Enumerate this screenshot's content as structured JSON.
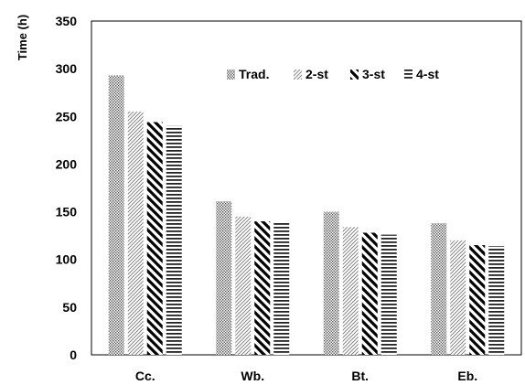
{
  "chart_data": {
    "type": "bar",
    "ylabel": "Time (h)",
    "xlabel": "",
    "ylim": [
      0,
      350
    ],
    "yticks": [
      0,
      50,
      100,
      150,
      200,
      250,
      300,
      350
    ],
    "categories": [
      "Cc.",
      "Wb.",
      "Bt.",
      "Eb."
    ],
    "series": [
      {
        "name": "Trad.",
        "pattern": "dots",
        "values": [
          293,
          161,
          150,
          138
        ]
      },
      {
        "name": "2-st",
        "pattern": "thin-diagonal",
        "values": [
          255,
          145,
          134,
          120
        ]
      },
      {
        "name": "3-st",
        "pattern": "thick-diagonal",
        "values": [
          244,
          140,
          128,
          115
        ]
      },
      {
        "name": "4-st",
        "pattern": "horizontal",
        "values": [
          240,
          139,
          126,
          114
        ]
      }
    ],
    "legend_position": "top-center inside plot",
    "grid": false
  }
}
